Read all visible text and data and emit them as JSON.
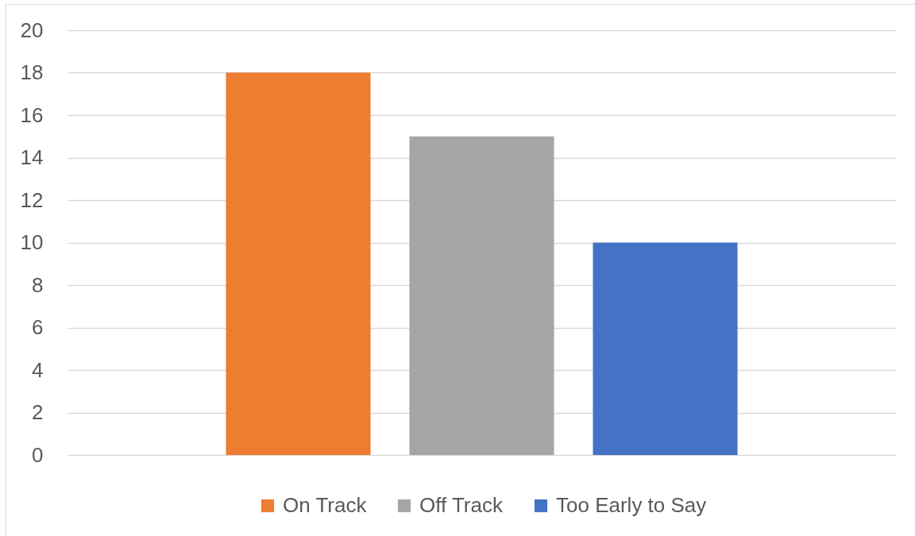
{
  "chart_data": {
    "type": "bar",
    "categories": [
      null
    ],
    "series": [
      {
        "name": "On Track",
        "color": "#ed7d31",
        "values": [
          18
        ]
      },
      {
        "name": "Off Track",
        "color": "#a5a5a5",
        "values": [
          15
        ]
      },
      {
        "name": "Too Early to Say",
        "color": "#4472c4",
        "values": [
          10
        ]
      }
    ],
    "ylim": [
      0,
      20
    ],
    "yticks": [
      0,
      2,
      4,
      6,
      8,
      10,
      12,
      14,
      16,
      18,
      20
    ],
    "grid": "y",
    "legend": "bottom"
  }
}
